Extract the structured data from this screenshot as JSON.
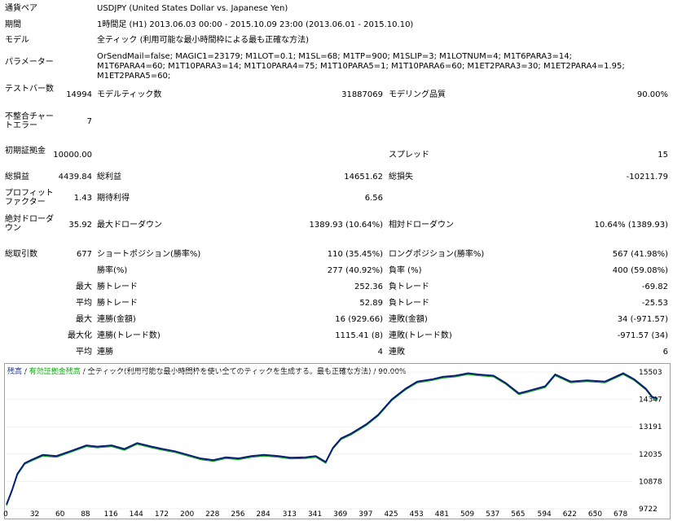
{
  "report": {
    "currency_pair_label": "通貨ペア",
    "currency_pair_value": "USDJPY (United States Dollar vs. Japanese Yen)",
    "period_label": "期間",
    "period_value": "1時間足 (H1) 2013.06.03 00:00 - 2015.10.09 23:00 (2013.06.01 - 2015.10.10)",
    "model_label": "モデル",
    "model_value": "全ティック (利用可能な最小時間枠による最も正確な方法)",
    "params_label": "パラメーター",
    "params_value": "OrSendMail=false; MAGIC1=23179; M1LOT=0.1; M1SL=68; M1TP=900; M1SLIP=3; M1LOTNUM=4; M1T6PARA3=14; M1T6PARA4=60; M1T10PARA3=14; M1T10PARA4=75; M1T10PARA5=1; M1T10PARA6=60; M1ET2PARA3=30; M1ET2PARA4=1.95; M1ET2PARA5=60;",
    "test_bars_label": "テストバー数",
    "test_bars_value": "14994",
    "model_ticks_label": "モデルティック数",
    "model_ticks_value": "31887069",
    "model_quality_label": "モデリング品質",
    "model_quality_value": "90.00%",
    "mismatch_label": "不整合チャートエラー",
    "mismatch_value": "7",
    "initial_deposit_label": "初期証拠金",
    "initial_deposit_value": "10000.00",
    "spread_label": "スプレッド",
    "spread_value": "15",
    "net_profit_label": "総損益",
    "net_profit_value": "4439.84",
    "gross_profit_label": "総利益",
    "gross_profit_value": "14651.62",
    "gross_loss_label": "総損失",
    "gross_loss_value": "-10211.79",
    "profit_factor_label": "プロフィットファクター",
    "profit_factor_value": "1.43",
    "expected_payoff_label": "期待利得",
    "expected_payoff_value": "6.56",
    "abs_drawdown_label": "絶対ドローダウン",
    "abs_drawdown_value": "35.92",
    "max_drawdown_label": "最大ドローダウン",
    "max_drawdown_value": "1389.93 (10.64%)",
    "rel_drawdown_label": "相対ドローダウン",
    "rel_drawdown_value": "10.64% (1389.93)",
    "total_trades_label": "総取引数",
    "total_trades_value": "677",
    "short_label": "ショートポジション(勝率%)",
    "short_value": "110 (35.45%)",
    "long_label": "ロングポジション(勝率%)",
    "long_value": "567 (41.98%)",
    "win_pct_label": "勝率(%)",
    "win_pct_value": "277 (40.92%)",
    "loss_pct_label": "負率 (%)",
    "loss_pct_value": "400 (59.08%)",
    "max_label": "最大",
    "avg_label": "平均",
    "maxization_label": "最大化",
    "win_trade_label": "勝トレード",
    "loss_trade_label": "負トレード",
    "max_win_trade_value": "252.36",
    "max_loss_trade_value": "-69.82",
    "avg_win_trade_value": "52.89",
    "avg_loss_trade_value": "-25.53",
    "consec_win_amount_label": "連勝(金額)",
    "consec_win_amount_value": "16 (929.66)",
    "consec_loss_amount_label": "連敗(金額)",
    "consec_loss_amount_value": "34 (-971.57)",
    "consec_win_trades_label": "連勝(トレード数)",
    "consec_win_trades_value": "1115.41 (8)",
    "consec_loss_trades_label": "連敗(トレード数)",
    "consec_loss_trades_value": "-971.57 (34)",
    "consec_wins_label": "連勝",
    "consec_wins_value": "4",
    "consec_losses_label": "連敗",
    "consec_losses_value": "6"
  },
  "chart_legend": {
    "balance": "残高",
    "sep1": " / ",
    "equity": "有効証拠金残高",
    "sep2": " / ",
    "model": "全ティック(利用可能な最小時間枠を使い全てのティックを生成する。最も正確な方法)",
    "sep3": " / ",
    "quality": "90.00%"
  },
  "chart_data": {
    "type": "line",
    "xlabel": "",
    "ylabel": "",
    "x_ticks": [
      "0",
      "32",
      "60",
      "88",
      "116",
      "144",
      "172",
      "200",
      "228",
      "256",
      "284",
      "313",
      "341",
      "369",
      "397",
      "425",
      "453",
      "481",
      "509",
      "537",
      "565",
      "594",
      "622",
      "650",
      "678"
    ],
    "y_ticks": [
      "15503",
      "14347",
      "13191",
      "12035",
      "10878",
      "9722"
    ],
    "ylim": [
      9722,
      15503
    ],
    "xlim": [
      0,
      690
    ],
    "colors": {
      "balance": "#0a1e78",
      "equity": "#00a000"
    },
    "series": [
      {
        "name": "残高",
        "points": [
          [
            0,
            9900
          ],
          [
            6,
            10500
          ],
          [
            12,
            11200
          ],
          [
            20,
            11650
          ],
          [
            28,
            11800
          ],
          [
            40,
            12000
          ],
          [
            55,
            11950
          ],
          [
            70,
            12150
          ],
          [
            88,
            12400
          ],
          [
            100,
            12350
          ],
          [
            116,
            12400
          ],
          [
            130,
            12250
          ],
          [
            144,
            12500
          ],
          [
            160,
            12350
          ],
          [
            172,
            12250
          ],
          [
            186,
            12150
          ],
          [
            200,
            12000
          ],
          [
            214,
            11850
          ],
          [
            228,
            11780
          ],
          [
            242,
            11900
          ],
          [
            256,
            11850
          ],
          [
            270,
            11950
          ],
          [
            284,
            12000
          ],
          [
            300,
            11950
          ],
          [
            313,
            11880
          ],
          [
            330,
            11900
          ],
          [
            341,
            11950
          ],
          [
            352,
            11700
          ],
          [
            360,
            12300
          ],
          [
            369,
            12700
          ],
          [
            380,
            12900
          ],
          [
            397,
            13300
          ],
          [
            410,
            13700
          ],
          [
            425,
            14350
          ],
          [
            440,
            14800
          ],
          [
            453,
            15100
          ],
          [
            470,
            15200
          ],
          [
            481,
            15300
          ],
          [
            495,
            15350
          ],
          [
            509,
            15450
          ],
          [
            520,
            15400
          ],
          [
            537,
            15350
          ],
          [
            550,
            15050
          ],
          [
            565,
            14600
          ],
          [
            575,
            14700
          ],
          [
            594,
            14900
          ],
          [
            605,
            15400
          ],
          [
            622,
            15100
          ],
          [
            640,
            15150
          ],
          [
            660,
            15100
          ],
          [
            680,
            15450
          ],
          [
            692,
            15200
          ],
          [
            705,
            14800
          ],
          [
            712,
            14450
          ],
          [
            718,
            14380
          ]
        ]
      }
    ]
  }
}
